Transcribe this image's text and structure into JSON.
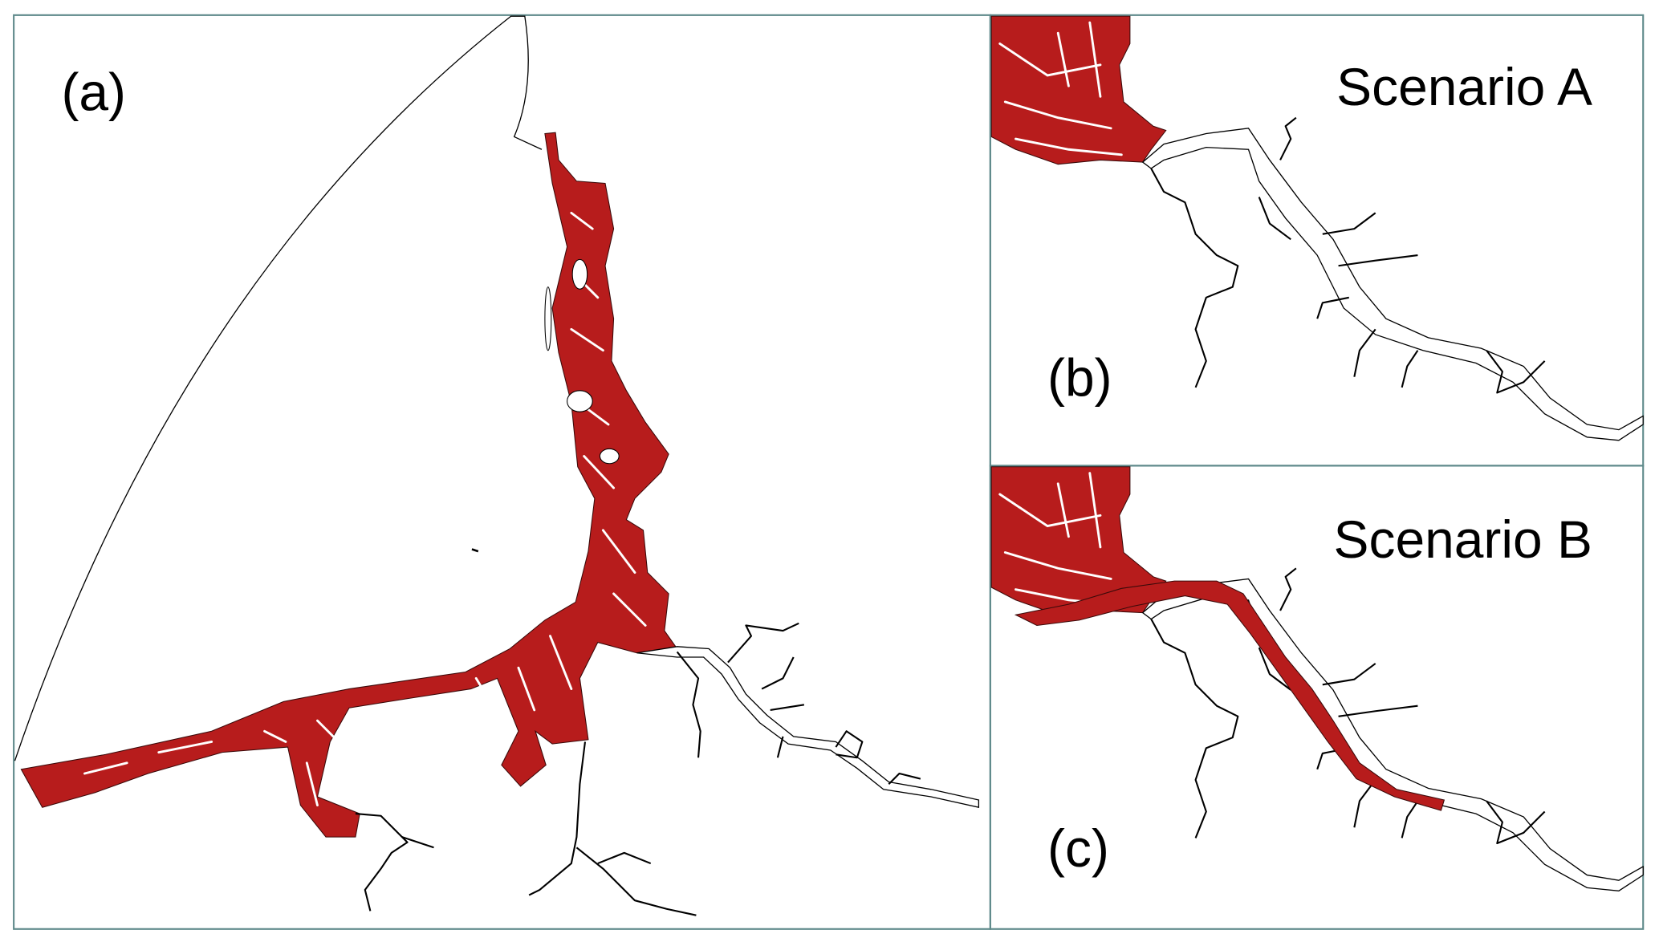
{
  "figure": {
    "panels": [
      {
        "id": "a",
        "label": "(a)"
      },
      {
        "id": "b",
        "label": "(b)",
        "title": "Scenario A"
      },
      {
        "id": "c",
        "label": "(c)",
        "title": "Scenario B"
      }
    ],
    "colors": {
      "intertidal_fill": "#b71c1c",
      "panel_border": "#5f8a8b",
      "outline": "#000000"
    }
  }
}
